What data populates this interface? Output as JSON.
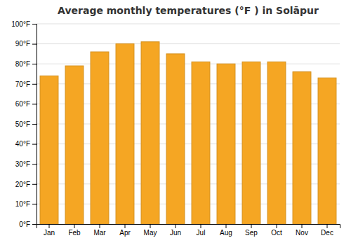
{
  "chart_data": {
    "type": "bar",
    "title": "Average monthly temperatures (°F ) in Solāpur",
    "categories": [
      "Jan",
      "Feb",
      "Mar",
      "Apr",
      "May",
      "Jun",
      "Jul",
      "Aug",
      "Sep",
      "Oct",
      "Nov",
      "Dec"
    ],
    "values": [
      74,
      79,
      86,
      90,
      91,
      85,
      81,
      80,
      81,
      81,
      76,
      73
    ],
    "color": "#F5A623",
    "ylim": [
      0,
      100
    ],
    "yticks": [
      {
        "value": 0,
        "label": "0°F"
      },
      {
        "value": 10,
        "label": "10°F"
      },
      {
        "value": 20,
        "label": "20°F"
      },
      {
        "value": 30,
        "label": "30°F"
      },
      {
        "value": 40,
        "label": "40°F"
      },
      {
        "value": 50,
        "label": "50°F"
      },
      {
        "value": 60,
        "label": "60°F"
      },
      {
        "value": 70,
        "label": "70°F"
      },
      {
        "value": 80,
        "label": "80°F"
      },
      {
        "value": 90,
        "label": "90°F"
      },
      {
        "value": 100,
        "label": "100°F"
      }
    ],
    "grid": true
  }
}
